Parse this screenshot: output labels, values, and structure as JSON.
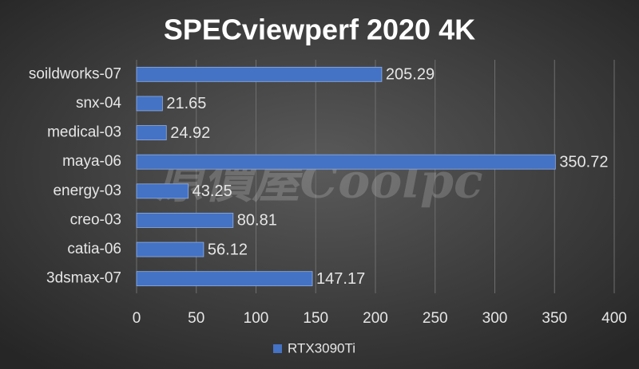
{
  "chart_data": {
    "type": "bar",
    "orientation": "horizontal",
    "title": "SPECviewperf 2020 4K",
    "watermark": "原價屋Coolpc",
    "categories": [
      "soildworks-07",
      "snx-04",
      "medical-03",
      "maya-06",
      "energy-03",
      "creo-03",
      "catia-06",
      "3dsmax-07"
    ],
    "series": [
      {
        "name": "RTX3090Ti",
        "color": "#4472c4",
        "values": [
          205.29,
          21.65,
          24.92,
          350.72,
          43.25,
          80.81,
          56.12,
          147.17
        ]
      }
    ],
    "xlim": [
      0,
      400
    ],
    "xticks": [
      0,
      50,
      100,
      150,
      200,
      250,
      300,
      350,
      400
    ],
    "grid": true,
    "legend": "bottom"
  }
}
